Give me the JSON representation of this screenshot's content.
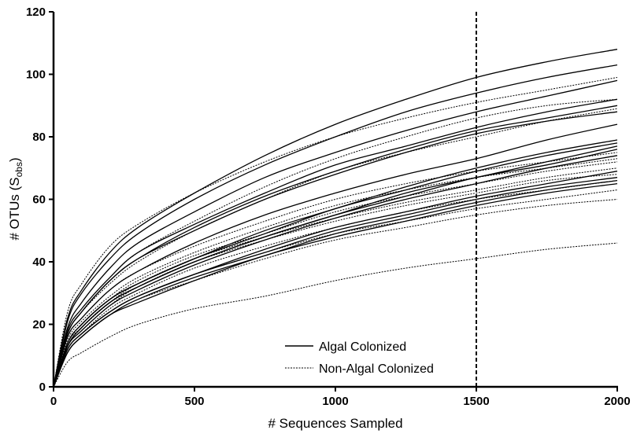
{
  "chart_data": {
    "type": "line",
    "xlabel": "# Sequences Sampled",
    "ylabel_parts": [
      "#  OTUs (S",
      "obs",
      ")"
    ],
    "xlim": [
      0,
      2000
    ],
    "ylim": [
      0,
      120
    ],
    "x_ticks": [
      0,
      500,
      1000,
      1500,
      2000
    ],
    "y_ticks": [
      0,
      20,
      40,
      60,
      80,
      100,
      120
    ],
    "grid": false,
    "legend_position": "bottom-right",
    "legend": [
      {
        "label": "Algal Colonized",
        "style": "solid"
      },
      {
        "label": "Non-Algal Colonized",
        "style": "dotted"
      }
    ],
    "reference_line": {
      "x": 1500,
      "style": "dashed"
    },
    "sample_x": [
      0,
      50,
      100,
      200,
      300,
      500,
      750,
      1000,
      1250,
      1500,
      1750,
      2000
    ],
    "series": [
      {
        "group": "Algal Colonized",
        "values": [
          0,
          22,
          31,
          43,
          51,
          62,
          74,
          84,
          92,
          99,
          104,
          108
        ]
      },
      {
        "group": "Algal Colonized",
        "values": [
          0,
          21,
          30,
          41,
          49,
          60,
          71,
          80,
          88,
          94,
          99,
          103
        ]
      },
      {
        "group": "Algal Colonized",
        "values": [
          0,
          19,
          27,
          38,
          46,
          56,
          67,
          75,
          82,
          88,
          93,
          98
        ]
      },
      {
        "group": "Algal Colonized",
        "values": [
          0,
          18,
          25,
          35,
          43,
          52,
          62,
          71,
          77,
          83,
          88,
          92
        ]
      },
      {
        "group": "Algal Colonized",
        "values": [
          0,
          17,
          24,
          34,
          41,
          51,
          61,
          69,
          76,
          82,
          86,
          90
        ]
      },
      {
        "group": "Algal Colonized",
        "values": [
          0,
          17,
          24,
          34,
          41,
          50,
          60,
          68,
          75,
          81,
          85,
          88
        ]
      },
      {
        "group": "Algal Colonized",
        "values": [
          0,
          16,
          22,
          31,
          37,
          46,
          55,
          62,
          68,
          73,
          79,
          84
        ]
      },
      {
        "group": "Algal Colonized",
        "values": [
          0,
          14,
          20,
          28,
          33,
          41,
          50,
          57,
          64,
          70,
          75,
          79
        ]
      },
      {
        "group": "Algal Colonized",
        "values": [
          0,
          14,
          20,
          28,
          33,
          41,
          49,
          57,
          63,
          69,
          74,
          78
        ]
      },
      {
        "group": "Algal Colonized",
        "values": [
          0,
          13,
          19,
          27,
          32,
          40,
          48,
          55,
          62,
          67,
          72,
          77
        ]
      },
      {
        "group": "Algal Colonized",
        "values": [
          0,
          13,
          19,
          27,
          32,
          40,
          48,
          55,
          61,
          67,
          71,
          76
        ]
      },
      {
        "group": "Algal Colonized",
        "values": [
          0,
          13,
          18,
          26,
          31,
          39,
          47,
          54,
          60,
          65,
          70,
          74
        ]
      },
      {
        "group": "Algal Colonized",
        "values": [
          0,
          12,
          17,
          24,
          29,
          36,
          44,
          51,
          56,
          61,
          65,
          69
        ]
      },
      {
        "group": "Algal Colonized",
        "values": [
          0,
          12,
          17,
          24,
          29,
          36,
          43,
          50,
          55,
          60,
          64,
          67
        ]
      },
      {
        "group": "Algal Colonized",
        "values": [
          0,
          11,
          16,
          23,
          28,
          35,
          42,
          49,
          54,
          59,
          63,
          66
        ]
      },
      {
        "group": "Algal Colonized",
        "values": [
          0,
          11,
          16,
          23,
          27,
          34,
          42,
          48,
          53,
          58,
          62,
          65
        ]
      },
      {
        "group": "Non-Algal Colonized",
        "values": [
          0,
          24,
          33,
          45,
          52,
          62,
          72,
          80,
          86,
          91,
          95,
          99
        ]
      },
      {
        "group": "Non-Algal Colonized",
        "values": [
          0,
          18,
          25,
          35,
          43,
          53,
          64,
          73,
          80,
          86,
          90,
          92
        ]
      },
      {
        "group": "Non-Algal Colonized",
        "values": [
          0,
          17,
          24,
          33,
          40,
          50,
          60,
          69,
          75,
          80,
          85,
          89
        ]
      },
      {
        "group": "Non-Algal Colonized",
        "values": [
          0,
          16,
          22,
          31,
          37,
          45,
          53,
          60,
          65,
          69,
          72,
          75
        ]
      },
      {
        "group": "Non-Algal Colonized",
        "values": [
          0,
          15,
          21,
          29,
          35,
          43,
          51,
          58,
          63,
          67,
          70,
          73
        ]
      },
      {
        "group": "Non-Algal Colonized",
        "values": [
          0,
          14,
          20,
          28,
          34,
          42,
          49,
          56,
          61,
          65,
          69,
          72
        ]
      },
      {
        "group": "Non-Algal Colonized",
        "values": [
          0,
          14,
          19,
          27,
          33,
          41,
          48,
          54,
          59,
          63,
          67,
          70
        ]
      },
      {
        "group": "Non-Algal Colonized",
        "values": [
          0,
          13,
          18,
          26,
          32,
          40,
          47,
          53,
          58,
          62,
          66,
          68
        ]
      },
      {
        "group": "Non-Algal Colonized",
        "values": [
          0,
          12,
          17,
          25,
          30,
          38,
          45,
          51,
          56,
          60,
          63,
          66
        ]
      },
      {
        "group": "Non-Algal Colonized",
        "values": [
          0,
          12,
          17,
          24,
          29,
          36,
          43,
          49,
          53,
          57,
          60,
          63
        ]
      },
      {
        "group": "Non-Algal Colonized",
        "values": [
          0,
          11,
          16,
          23,
          28,
          34,
          41,
          47,
          51,
          55,
          58,
          60
        ]
      },
      {
        "group": "Non-Algal Colonized",
        "values": [
          0,
          8,
          11,
          16,
          20,
          25,
          29,
          34,
          38,
          41,
          44,
          46
        ]
      }
    ]
  }
}
